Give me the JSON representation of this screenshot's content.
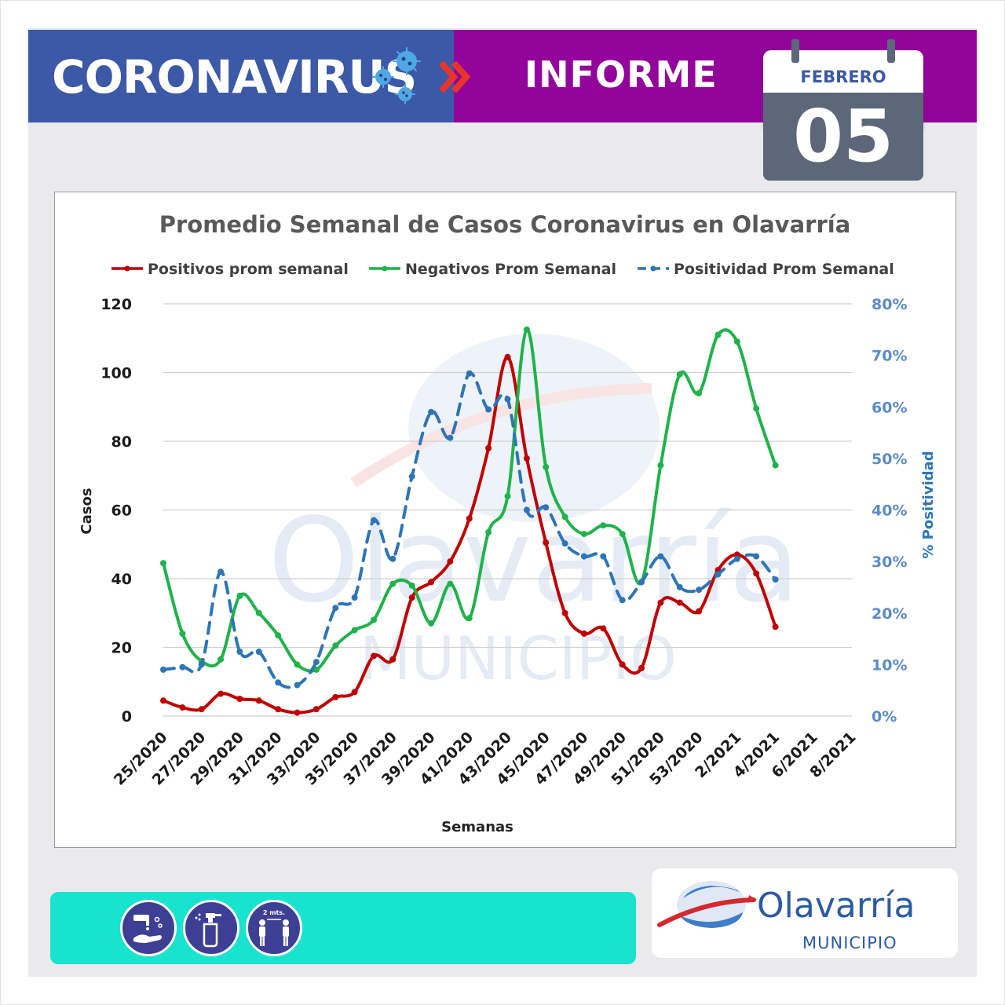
{
  "header": {
    "title": "CORONAVIRUS",
    "report_label": "INFORME",
    "month": "FEBRERO",
    "day": "05",
    "left_color": "#3b59a6",
    "right_color": "#93059a"
  },
  "chart_data": {
    "type": "line",
    "title": "Promedio Semanal de Casos Coronavirus en Olavarría",
    "xlabel": "Semanas",
    "ylabel": "Casos",
    "y2label": "% Positividad",
    "ylim": [
      0,
      120
    ],
    "y_ticks": [
      "0",
      "20",
      "40",
      "60",
      "80",
      "100",
      "120"
    ],
    "y2lim": [
      0,
      80
    ],
    "y2_ticks": [
      "0%",
      "10%",
      "20%",
      "30%",
      "40%",
      "50%",
      "60%",
      "70%",
      "80%"
    ],
    "grid": true,
    "legend_position": "top",
    "x": [
      "25/2020",
      "26/2020",
      "27/2020",
      "28/2020",
      "29/2020",
      "30/2020",
      "31/2020",
      "32/2020",
      "33/2020",
      "34/2020",
      "35/2020",
      "36/2020",
      "37/2020",
      "38/2020",
      "39/2020",
      "40/2020",
      "41/2020",
      "42/2020",
      "43/2020",
      "44/2020",
      "45/2020",
      "46/2020",
      "47/2020",
      "48/2020",
      "49/2020",
      "50/2020",
      "51/2020",
      "52/2020",
      "53/2020",
      "1/2021",
      "2/2021",
      "3/2021",
      "4/2021",
      "5/2021",
      "6/2021",
      "7/2021",
      "8/2021"
    ],
    "x_tick_labels": [
      "25/2020",
      "27/2020",
      "29/2020",
      "31/2020",
      "33/2020",
      "35/2020",
      "37/2020",
      "39/2020",
      "41/2020",
      "43/2020",
      "45/2020",
      "47/2020",
      "49/2020",
      "51/2020",
      "53/2020",
      "2/2021",
      "4/2021",
      "6/2021",
      "8/2021"
    ],
    "series": [
      {
        "name": "Positivos prom semanal",
        "color": "#c00000",
        "axis": "left",
        "style": "solid",
        "values": [
          4.5,
          2.5,
          2,
          6.5,
          5,
          4.5,
          2,
          1,
          2,
          5.5,
          7,
          17.5,
          16.5,
          34.5,
          39,
          45,
          57.5,
          78,
          104.5,
          75,
          50.5,
          30,
          24,
          25.5,
          15,
          14,
          33,
          33,
          30.5,
          42.5,
          47,
          41.5,
          26,
          null,
          null,
          null,
          null
        ]
      },
      {
        "name": "Negativos Prom Semanal",
        "color": "#1fb34a",
        "axis": "left",
        "style": "solid",
        "values": [
          44.5,
          24,
          16,
          16.5,
          35,
          30,
          23.5,
          15,
          13.5,
          20.5,
          25,
          28,
          38.5,
          38,
          27,
          38.5,
          28.5,
          53.5,
          64,
          112.5,
          72.5,
          58,
          53,
          55.5,
          53,
          39,
          73,
          99.5,
          94,
          111,
          109,
          89.5,
          73,
          null,
          null,
          null,
          null
        ]
      },
      {
        "name": "Positividad Prom Semanal",
        "color": "#2e75b6",
        "axis": "right",
        "style": "dashed",
        "values": [
          9,
          9.5,
          10,
          28,
          12.5,
          12.5,
          6.5,
          6,
          10.5,
          21,
          23,
          38,
          30.5,
          46.5,
          59,
          54,
          66.5,
          59.5,
          61.5,
          40,
          40.5,
          33.5,
          31,
          31,
          22.5,
          26,
          31,
          25,
          24.5,
          27.5,
          30.5,
          31,
          26.5,
          null,
          null,
          null,
          null
        ]
      }
    ]
  },
  "watermark": {
    "name": "Olavarría",
    "subtitle": "MUNICIPIO"
  },
  "footer": {
    "protocol_icons": [
      "handwash-icon",
      "sanitizer-spray-icon",
      "social-distance-icon"
    ],
    "distance_label": "2 mts.",
    "bar_color": "#17e3cf",
    "logo_name": "Olavarría",
    "logo_subtitle": "MUNICIPIO"
  }
}
